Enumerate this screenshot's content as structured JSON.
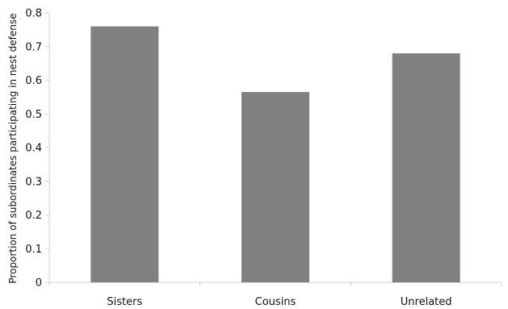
{
  "chart_data": {
    "type": "bar",
    "title": "",
    "xlabel": "",
    "ylabel": "Proportion of subordinates participating in nest defense",
    "categories": [
      "Sisters",
      "Cousins",
      "Unrelated"
    ],
    "values": [
      0.76,
      0.565,
      0.68
    ],
    "ylim": [
      0,
      0.8
    ],
    "yticks": [
      "0",
      "0.1",
      "0.2",
      "0.3",
      "0.4",
      "0.5",
      "0.6",
      "0.7",
      "0.8"
    ],
    "grid": false,
    "legend": "none",
    "bar_color": "#808080"
  }
}
